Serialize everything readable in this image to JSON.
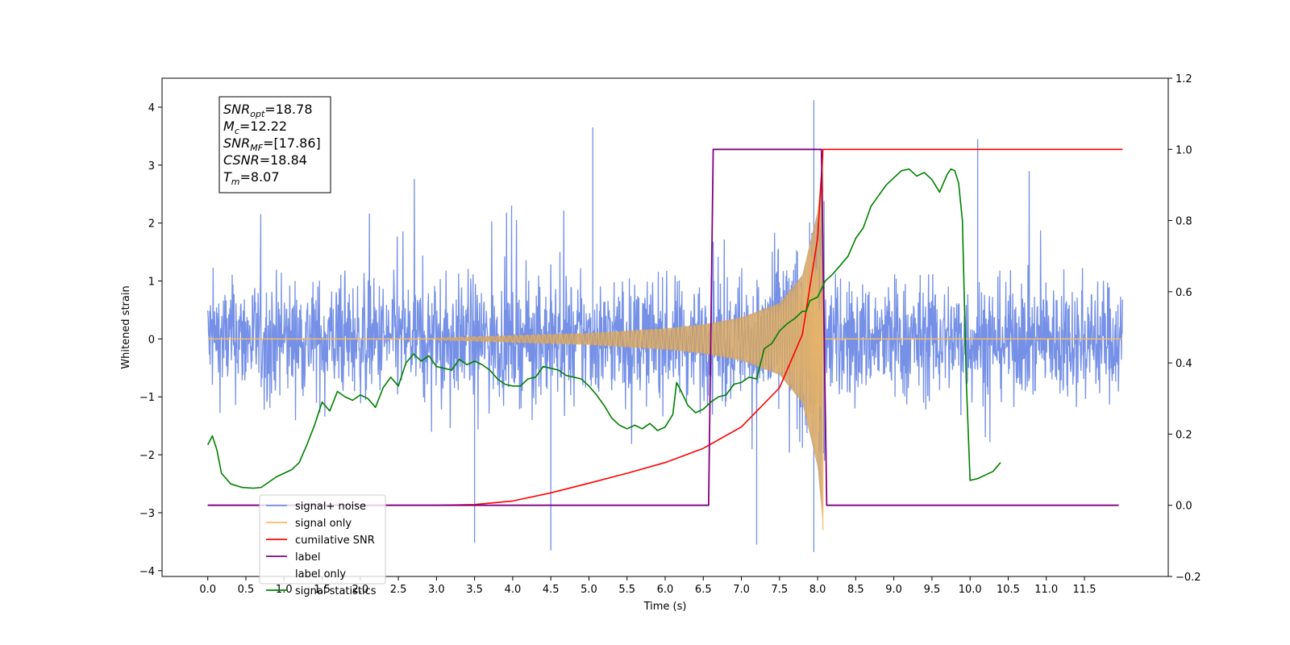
{
  "chart_data": {
    "type": "line",
    "xlabel": "Time (s)",
    "ylabel": "Whitened strain",
    "xlim": [
      -0.6,
      12.6
    ],
    "ylim": [
      -4.1,
      4.5
    ],
    "y2lim": [
      -0.2,
      1.2
    ],
    "x_ticks": [
      0.0,
      0.5,
      1.0,
      1.5,
      2.0,
      2.5,
      3.0,
      3.5,
      4.0,
      4.5,
      5.0,
      5.5,
      6.0,
      6.5,
      7.0,
      7.5,
      8.0,
      8.5,
      9.0,
      9.5,
      10.0,
      10.5,
      11.0,
      11.5
    ],
    "x_tick_labels": [
      "0.0",
      "0.5",
      "1.0",
      "1.5",
      "2.0",
      "2.5",
      "3.0",
      "3.5",
      "4.0",
      "4.5",
      "5.0",
      "5.5",
      "6.0",
      "6.5",
      "7.0",
      "7.5",
      "8.0",
      "8.5",
      "9.0",
      "9.5",
      "10.0",
      "10.5",
      "11.0",
      "11.5"
    ],
    "y_ticks": [
      -4,
      -3,
      -2,
      -1,
      0,
      1,
      2,
      3,
      4
    ],
    "y_tick_labels": [
      "−4",
      "−3",
      "−2",
      "−1",
      "0",
      "1",
      "2",
      "3",
      "4"
    ],
    "y2_ticks": [
      -0.2,
      0.0,
      0.2,
      0.4,
      0.6,
      0.8,
      1.0,
      1.2
    ],
    "y2_tick_labels": [
      "−0.2",
      "0.0",
      "0.2",
      "0.4",
      "0.6",
      "0.8",
      "1.0",
      "1.2"
    ],
    "grid": false,
    "legend_position": "lower-left",
    "annotation": {
      "lines": [
        {
          "var": "SNR",
          "sub": "opt",
          "value": "=18.78"
        },
        {
          "var": "M",
          "sub": "c",
          "value": "=12.22"
        },
        {
          "var": "SNR",
          "sub": "MF",
          "value": "=[17.86]"
        },
        {
          "var": "CSNR",
          "sub": "",
          "value": "=18.84"
        },
        {
          "var": "T",
          "sub": "m",
          "value": "=8.07"
        }
      ]
    },
    "series": [
      {
        "name": "signal+ noise",
        "color": "#7590e6",
        "axis": "left",
        "description": "noisy whitened strain",
        "x_range": [
          0.0,
          12.0
        ],
        "typical_amplitude": [
          -1.6,
          1.8
        ],
        "peak_values": [
          {
            "x": 5.05,
            "y": 3.65
          },
          {
            "x": 7.95,
            "y": 4.12
          },
          {
            "x": 10.1,
            "y": 3.45
          },
          {
            "x": 4.5,
            "y": -3.65
          },
          {
            "x": 7.95,
            "y": -3.68
          },
          {
            "x": 3.5,
            "y": -3.52
          },
          {
            "x": 7.2,
            "y": -3.55
          }
        ]
      },
      {
        "name": "signal only",
        "color": "#f5bc63",
        "axis": "left",
        "x_range": [
          0.0,
          12.0
        ],
        "chirp_start": 3.0,
        "merger_time": 8.07,
        "envelope": [
          {
            "x": 3.0,
            "y": 0.02
          },
          {
            "x": 5.0,
            "y": 0.1
          },
          {
            "x": 6.0,
            "y": 0.18
          },
          {
            "x": 6.5,
            "y": 0.25
          },
          {
            "x": 7.0,
            "y": 0.37
          },
          {
            "x": 7.5,
            "y": 0.62
          },
          {
            "x": 7.8,
            "y": 1.1
          },
          {
            "x": 8.0,
            "y": 2.2
          },
          {
            "x": 8.07,
            "y": 3.2
          }
        ]
      },
      {
        "name": "cumilative SNR",
        "color": "#ff0000",
        "axis": "right",
        "points": [
          {
            "x": 0.0,
            "y": 0.0
          },
          {
            "x": 3.0,
            "y": 0.0
          },
          {
            "x": 3.5,
            "y": 0.002
          },
          {
            "x": 4.0,
            "y": 0.012
          },
          {
            "x": 4.5,
            "y": 0.035
          },
          {
            "x": 5.0,
            "y": 0.062
          },
          {
            "x": 5.5,
            "y": 0.09
          },
          {
            "x": 6.0,
            "y": 0.12
          },
          {
            "x": 6.5,
            "y": 0.16
          },
          {
            "x": 7.0,
            "y": 0.22
          },
          {
            "x": 7.5,
            "y": 0.33
          },
          {
            "x": 7.8,
            "y": 0.48
          },
          {
            "x": 8.0,
            "y": 0.75
          },
          {
            "x": 8.07,
            "y": 1.0
          },
          {
            "x": 12.0,
            "y": 1.0
          }
        ]
      },
      {
        "name": "label",
        "color": "#800080",
        "axis": "right",
        "points": [
          {
            "x": 0.0,
            "y": 0.0
          },
          {
            "x": 6.57,
            "y": 0.0
          },
          {
            "x": 6.63,
            "y": 1.0
          },
          {
            "x": 8.05,
            "y": 1.0
          },
          {
            "x": 8.12,
            "y": 0.0
          },
          {
            "x": 11.95,
            "y": 0.0
          }
        ]
      },
      {
        "name": "label only",
        "color": "#ffffff",
        "axis": "right",
        "points": []
      },
      {
        "name": "signal statistics",
        "color": "#008000",
        "axis": "right",
        "points": [
          {
            "x": 0.0,
            "y": 0.17
          },
          {
            "x": 0.06,
            "y": 0.195
          },
          {
            "x": 0.12,
            "y": 0.155
          },
          {
            "x": 0.18,
            "y": 0.09
          },
          {
            "x": 0.3,
            "y": 0.06
          },
          {
            "x": 0.45,
            "y": 0.05
          },
          {
            "x": 0.6,
            "y": 0.048
          },
          {
            "x": 0.7,
            "y": 0.05
          },
          {
            "x": 0.8,
            "y": 0.065
          },
          {
            "x": 0.9,
            "y": 0.08
          },
          {
            "x": 1.0,
            "y": 0.09
          },
          {
            "x": 1.1,
            "y": 0.1
          },
          {
            "x": 1.2,
            "y": 0.12
          },
          {
            "x": 1.3,
            "y": 0.17
          },
          {
            "x": 1.4,
            "y": 0.225
          },
          {
            "x": 1.5,
            "y": 0.29
          },
          {
            "x": 1.6,
            "y": 0.265
          },
          {
            "x": 1.7,
            "y": 0.32
          },
          {
            "x": 1.8,
            "y": 0.305
          },
          {
            "x": 1.9,
            "y": 0.295
          },
          {
            "x": 2.0,
            "y": 0.31
          },
          {
            "x": 2.1,
            "y": 0.3
          },
          {
            "x": 2.2,
            "y": 0.275
          },
          {
            "x": 2.3,
            "y": 0.33
          },
          {
            "x": 2.4,
            "y": 0.36
          },
          {
            "x": 2.5,
            "y": 0.335
          },
          {
            "x": 2.6,
            "y": 0.4
          },
          {
            "x": 2.7,
            "y": 0.425
          },
          {
            "x": 2.8,
            "y": 0.405
          },
          {
            "x": 2.9,
            "y": 0.42
          },
          {
            "x": 3.0,
            "y": 0.39
          },
          {
            "x": 3.1,
            "y": 0.385
          },
          {
            "x": 3.2,
            "y": 0.38
          },
          {
            "x": 3.3,
            "y": 0.41
          },
          {
            "x": 3.4,
            "y": 0.395
          },
          {
            "x": 3.5,
            "y": 0.405
          },
          {
            "x": 3.6,
            "y": 0.395
          },
          {
            "x": 3.7,
            "y": 0.38
          },
          {
            "x": 3.8,
            "y": 0.355
          },
          {
            "x": 3.9,
            "y": 0.34
          },
          {
            "x": 4.0,
            "y": 0.335
          },
          {
            "x": 4.1,
            "y": 0.335
          },
          {
            "x": 4.2,
            "y": 0.355
          },
          {
            "x": 4.3,
            "y": 0.36
          },
          {
            "x": 4.4,
            "y": 0.39
          },
          {
            "x": 4.5,
            "y": 0.385
          },
          {
            "x": 4.6,
            "y": 0.38
          },
          {
            "x": 4.7,
            "y": 0.365
          },
          {
            "x": 4.8,
            "y": 0.36
          },
          {
            "x": 4.9,
            "y": 0.355
          },
          {
            "x": 5.0,
            "y": 0.335
          },
          {
            "x": 5.1,
            "y": 0.31
          },
          {
            "x": 5.2,
            "y": 0.28
          },
          {
            "x": 5.3,
            "y": 0.245
          },
          {
            "x": 5.4,
            "y": 0.225
          },
          {
            "x": 5.5,
            "y": 0.215
          },
          {
            "x": 5.6,
            "y": 0.225
          },
          {
            "x": 5.7,
            "y": 0.215
          },
          {
            "x": 5.8,
            "y": 0.23
          },
          {
            "x": 5.9,
            "y": 0.21
          },
          {
            "x": 6.0,
            "y": 0.22
          },
          {
            "x": 6.1,
            "y": 0.255
          },
          {
            "x": 6.15,
            "y": 0.345
          },
          {
            "x": 6.2,
            "y": 0.325
          },
          {
            "x": 6.3,
            "y": 0.28
          },
          {
            "x": 6.4,
            "y": 0.26
          },
          {
            "x": 6.5,
            "y": 0.27
          },
          {
            "x": 6.6,
            "y": 0.29
          },
          {
            "x": 6.7,
            "y": 0.305
          },
          {
            "x": 6.8,
            "y": 0.31
          },
          {
            "x": 6.9,
            "y": 0.34
          },
          {
            "x": 7.0,
            "y": 0.345
          },
          {
            "x": 7.1,
            "y": 0.36
          },
          {
            "x": 7.2,
            "y": 0.355
          },
          {
            "x": 7.3,
            "y": 0.44
          },
          {
            "x": 7.4,
            "y": 0.455
          },
          {
            "x": 7.5,
            "y": 0.49
          },
          {
            "x": 7.6,
            "y": 0.51
          },
          {
            "x": 7.7,
            "y": 0.525
          },
          {
            "x": 7.8,
            "y": 0.545
          },
          {
            "x": 7.85,
            "y": 0.545
          },
          {
            "x": 7.9,
            "y": 0.575
          },
          {
            "x": 8.0,
            "y": 0.585
          },
          {
            "x": 8.1,
            "y": 0.63
          },
          {
            "x": 8.2,
            "y": 0.65
          },
          {
            "x": 8.3,
            "y": 0.675
          },
          {
            "x": 8.4,
            "y": 0.7
          },
          {
            "x": 8.5,
            "y": 0.75
          },
          {
            "x": 8.6,
            "y": 0.78
          },
          {
            "x": 8.7,
            "y": 0.84
          },
          {
            "x": 8.8,
            "y": 0.87
          },
          {
            "x": 8.9,
            "y": 0.9
          },
          {
            "x": 9.0,
            "y": 0.92
          },
          {
            "x": 9.1,
            "y": 0.94
          },
          {
            "x": 9.2,
            "y": 0.945
          },
          {
            "x": 9.3,
            "y": 0.925
          },
          {
            "x": 9.4,
            "y": 0.935
          },
          {
            "x": 9.5,
            "y": 0.915
          },
          {
            "x": 9.6,
            "y": 0.88
          },
          {
            "x": 9.7,
            "y": 0.93
          },
          {
            "x": 9.75,
            "y": 0.945
          },
          {
            "x": 9.8,
            "y": 0.94
          },
          {
            "x": 9.85,
            "y": 0.905
          },
          {
            "x": 9.9,
            "y": 0.8
          },
          {
            "x": 9.95,
            "y": 0.35
          },
          {
            "x": 10.0,
            "y": 0.07
          },
          {
            "x": 10.1,
            "y": 0.075
          },
          {
            "x": 10.2,
            "y": 0.085
          },
          {
            "x": 10.3,
            "y": 0.095
          },
          {
            "x": 10.4,
            "y": 0.12
          }
        ]
      }
    ]
  }
}
